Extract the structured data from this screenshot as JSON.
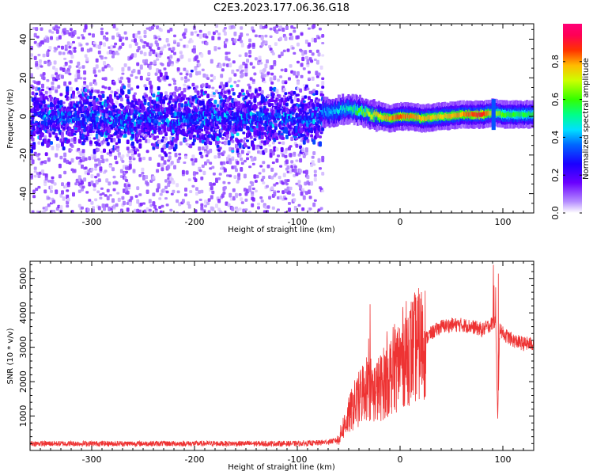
{
  "title": "C2E3.2023.177.06.36.G18",
  "chart_data": [
    {
      "type": "heatmap",
      "xlabel": "Height of straight line (km)",
      "ylabel": "Frequency (Hz)",
      "xlim": [
        -360,
        130
      ],
      "ylim": [
        -50,
        48
      ],
      "xticks": [
        -300,
        -200,
        -100,
        0,
        100
      ],
      "yticks": [
        -40,
        -20,
        0,
        20,
        40
      ],
      "colorbar": {
        "label": "Normalized spectral amplitude",
        "ticks": [
          0.0,
          0.2,
          0.4,
          0.6,
          0.8
        ],
        "tick_labels": [
          "0.0",
          "0.2",
          "0.4",
          "0.6",
          "0.8"
        ],
        "range": [
          0,
          1
        ],
        "colormap": "gist_rainbow_r"
      },
      "features": {
        "noise_region_x": [
          -360,
          -76
        ],
        "noise_band_center_hz": 0,
        "noise_band_halfwidth_hz": 8,
        "signal_track": [
          {
            "x": -76,
            "y": 2,
            "amp": 0.4
          },
          {
            "x": -60,
            "y": 3,
            "amp": 0.45
          },
          {
            "x": -50,
            "y": 4,
            "amp": 0.5
          },
          {
            "x": -40,
            "y": 3,
            "amp": 0.6
          },
          {
            "x": -30,
            "y": 1,
            "amp": 0.7
          },
          {
            "x": -20,
            "y": 0,
            "amp": 0.75
          },
          {
            "x": -10,
            "y": -1,
            "amp": 0.8
          },
          {
            "x": 0,
            "y": 0,
            "amp": 0.85
          },
          {
            "x": 10,
            "y": 0,
            "amp": 0.8
          },
          {
            "x": 20,
            "y": -1,
            "amp": 0.78
          },
          {
            "x": 40,
            "y": 0,
            "amp": 0.75
          },
          {
            "x": 60,
            "y": 1,
            "amp": 0.8
          },
          {
            "x": 80,
            "y": 1,
            "amp": 0.9
          },
          {
            "x": 90,
            "y": 2,
            "amp": 0.7
          },
          {
            "x": 100,
            "y": 1,
            "amp": 0.6
          },
          {
            "x": 130,
            "y": 1,
            "amp": 0.55
          }
        ]
      }
    },
    {
      "type": "line",
      "xlabel": "Height of straight line (km)",
      "ylabel": "SNR (10 * v/v)",
      "xlim": [
        -360,
        130
      ],
      "ylim": [
        0,
        5500
      ],
      "xticks": [
        -300,
        -200,
        -100,
        0,
        100
      ],
      "yticks": [
        1000,
        2000,
        3000,
        4000,
        5000
      ],
      "color": "#ee3333",
      "x": [
        -360,
        -300,
        -200,
        -150,
        -100,
        -80,
        -70,
        -60,
        -55,
        -50,
        -45,
        -40,
        -35,
        -30,
        -25,
        -20,
        -15,
        -10,
        -5,
        0,
        5,
        10,
        20,
        30,
        40,
        50,
        60,
        70,
        80,
        85,
        90,
        93,
        95,
        97,
        100,
        110,
        120,
        130
      ],
      "y": [
        200,
        200,
        200,
        200,
        200,
        220,
        250,
        300,
        700,
        1000,
        1300,
        1500,
        1800,
        1900,
        1700,
        1800,
        2000,
        2200,
        2400,
        2600,
        2800,
        2900,
        3100,
        3400,
        3600,
        3650,
        3650,
        3600,
        3500,
        3600,
        3700,
        3800,
        800,
        3600,
        3400,
        3200,
        3100,
        3100
      ]
    }
  ]
}
